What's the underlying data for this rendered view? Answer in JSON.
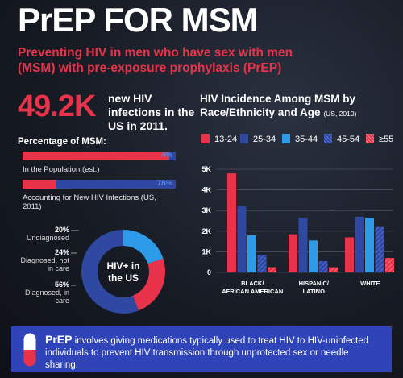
{
  "header": {
    "title": "PrEP FOR MSM",
    "subtitle": "Preventing HIV in men who have sex with men (MSM) with pre-exposure prophylaxis (PrEP)"
  },
  "stat": {
    "number": "49.2K",
    "text": "new HIV infections in the US in 2011."
  },
  "percentage": {
    "title": "Percentage of MSM:",
    "bars": [
      {
        "label": "In the Population (est.)",
        "value": 4,
        "value_text": "4%"
      },
      {
        "label": "Accounting for New HIV Infections (US, 2011)",
        "value": 78,
        "value_text": "78%"
      }
    ]
  },
  "donut": {
    "center": "HIV+ in the US",
    "segments": [
      {
        "pct": "20%",
        "label": "Undiagnosed",
        "value": 20,
        "color": "#2e9be8"
      },
      {
        "pct": "24%",
        "label": "Diagnosed, not in care",
        "value": 24,
        "color": "#e8334a"
      },
      {
        "pct": "56%",
        "label": "Diagnosed, in care",
        "value": 56,
        "color": "#2f49a3"
      }
    ]
  },
  "chart_data": {
    "type": "bar",
    "title": "HIV Incidence Among MSM by Race/Ethnicity and Age",
    "title_note": "(US, 2010)",
    "categories": [
      "BLACK/AFRICAN AMERICAN",
      "HISPANIC/ LATINO",
      "WHITE"
    ],
    "series": [
      {
        "name": "13-24",
        "values": [
          4800,
          1850,
          1700
        ],
        "color": "#e8334a"
      },
      {
        "name": "25-34",
        "values": [
          3200,
          2650,
          2700
        ],
        "color": "#2f49a3"
      },
      {
        "name": "35-44",
        "values": [
          1800,
          1550,
          2650
        ],
        "color": "#2e9be8"
      },
      {
        "name": "45-54",
        "values": [
          850,
          550,
          2200
        ],
        "color": "#2f49a3"
      },
      {
        "name": "≥55",
        "values": [
          250,
          250,
          700
        ],
        "color": "#e8334a"
      }
    ],
    "yticks": [
      "0",
      "1K",
      "2K",
      "3K",
      "4K",
      "5K"
    ],
    "ylim": [
      0,
      5000
    ]
  },
  "footer": {
    "lead": "PrEP",
    "text": "involves giving medications typically used to treat HIV to HIV-uninfected individuals to prevent HIV transmission through unprotected sex or needle sharing."
  }
}
